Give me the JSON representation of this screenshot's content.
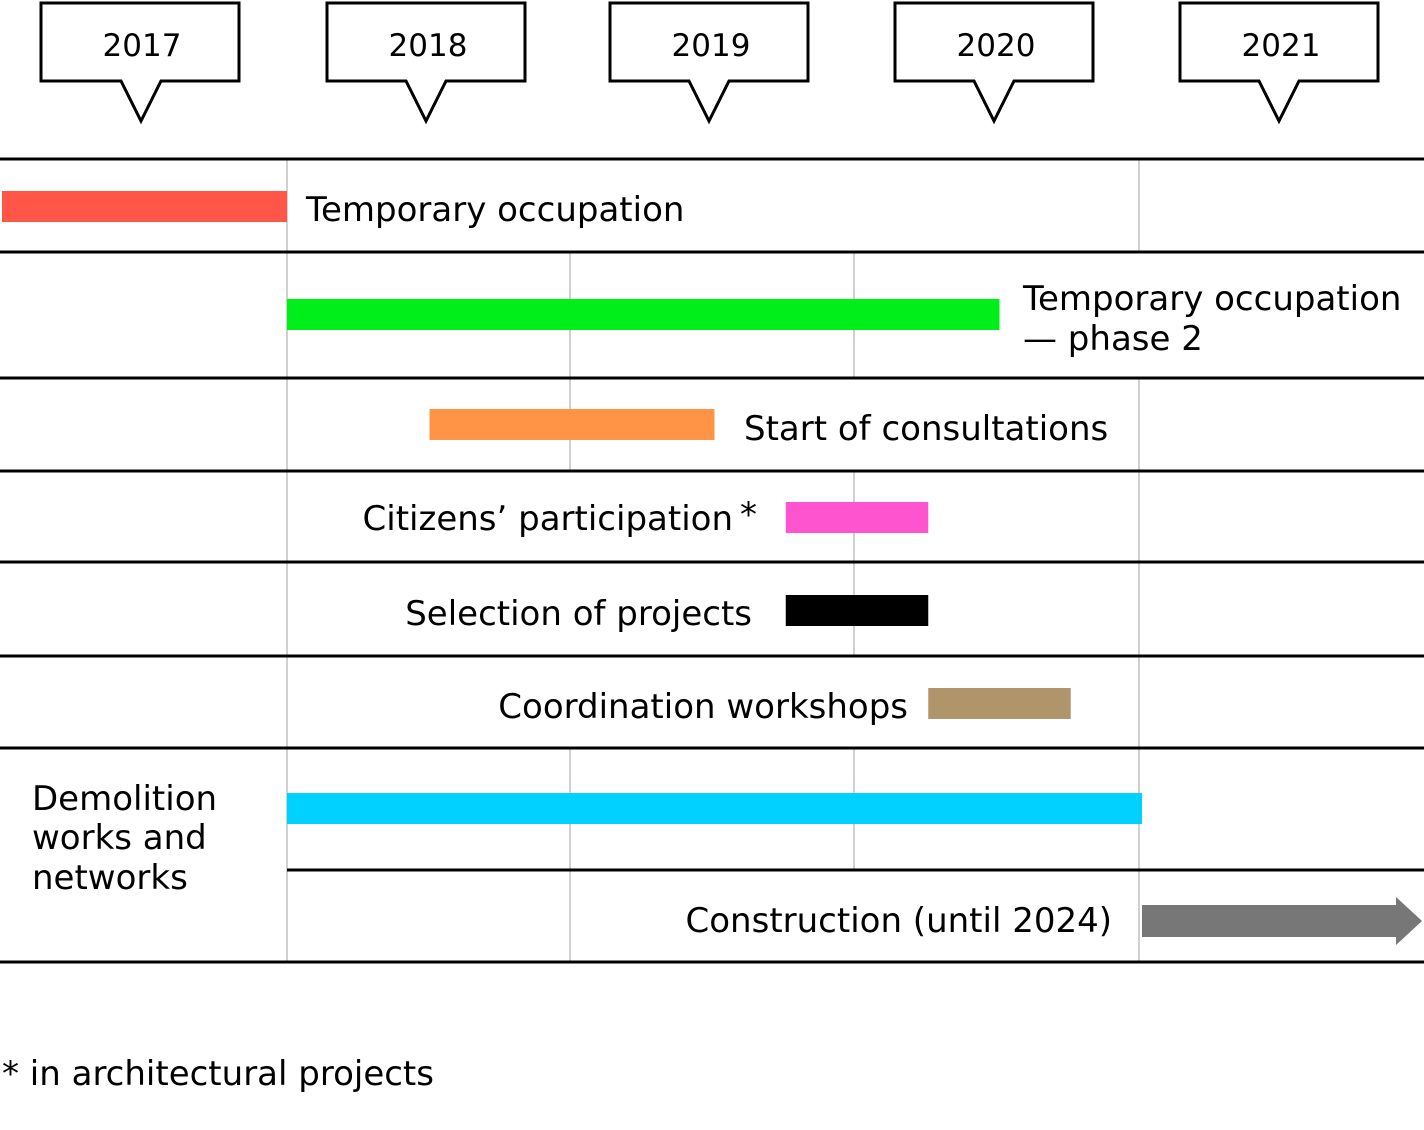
{
  "years": [
    "2017",
    "2018",
    "2019",
    "2020",
    "2021"
  ],
  "rows": [
    {
      "label": "Temporary occupation",
      "color": "#ff5648",
      "start": 2017.0,
      "end": 2018.0
    },
    {
      "label": "Temporary occupation",
      "label2": "— phase 2",
      "color": "#00ef1a",
      "start": 2018.0,
      "end": 2020.5
    },
    {
      "label": "Start of consultations",
      "color": "#ff9447",
      "start": 2018.5,
      "end": 2019.5
    },
    {
      "label": "Citizens’ participation",
      "marker": "*",
      "color": "#ff54d0",
      "start": 2019.75,
      "end": 2020.25
    },
    {
      "label": "Selection of projects",
      "color": "#000000",
      "start": 2019.75,
      "end": 2020.25
    },
    {
      "label": "Coordination workshops",
      "color": "#b0956b",
      "start": 2020.25,
      "end": 2020.75
    },
    {
      "label": "Demolition",
      "label2": "works and",
      "label3": "networks",
      "color": "#00d1ff",
      "start": 2018.0,
      "end": 2021.0
    },
    {
      "label": "Construction (until 2024)",
      "color": "#777777",
      "start": 2021.0,
      "end": 2022.0
    }
  ],
  "footnote": "* in architectural projects"
}
